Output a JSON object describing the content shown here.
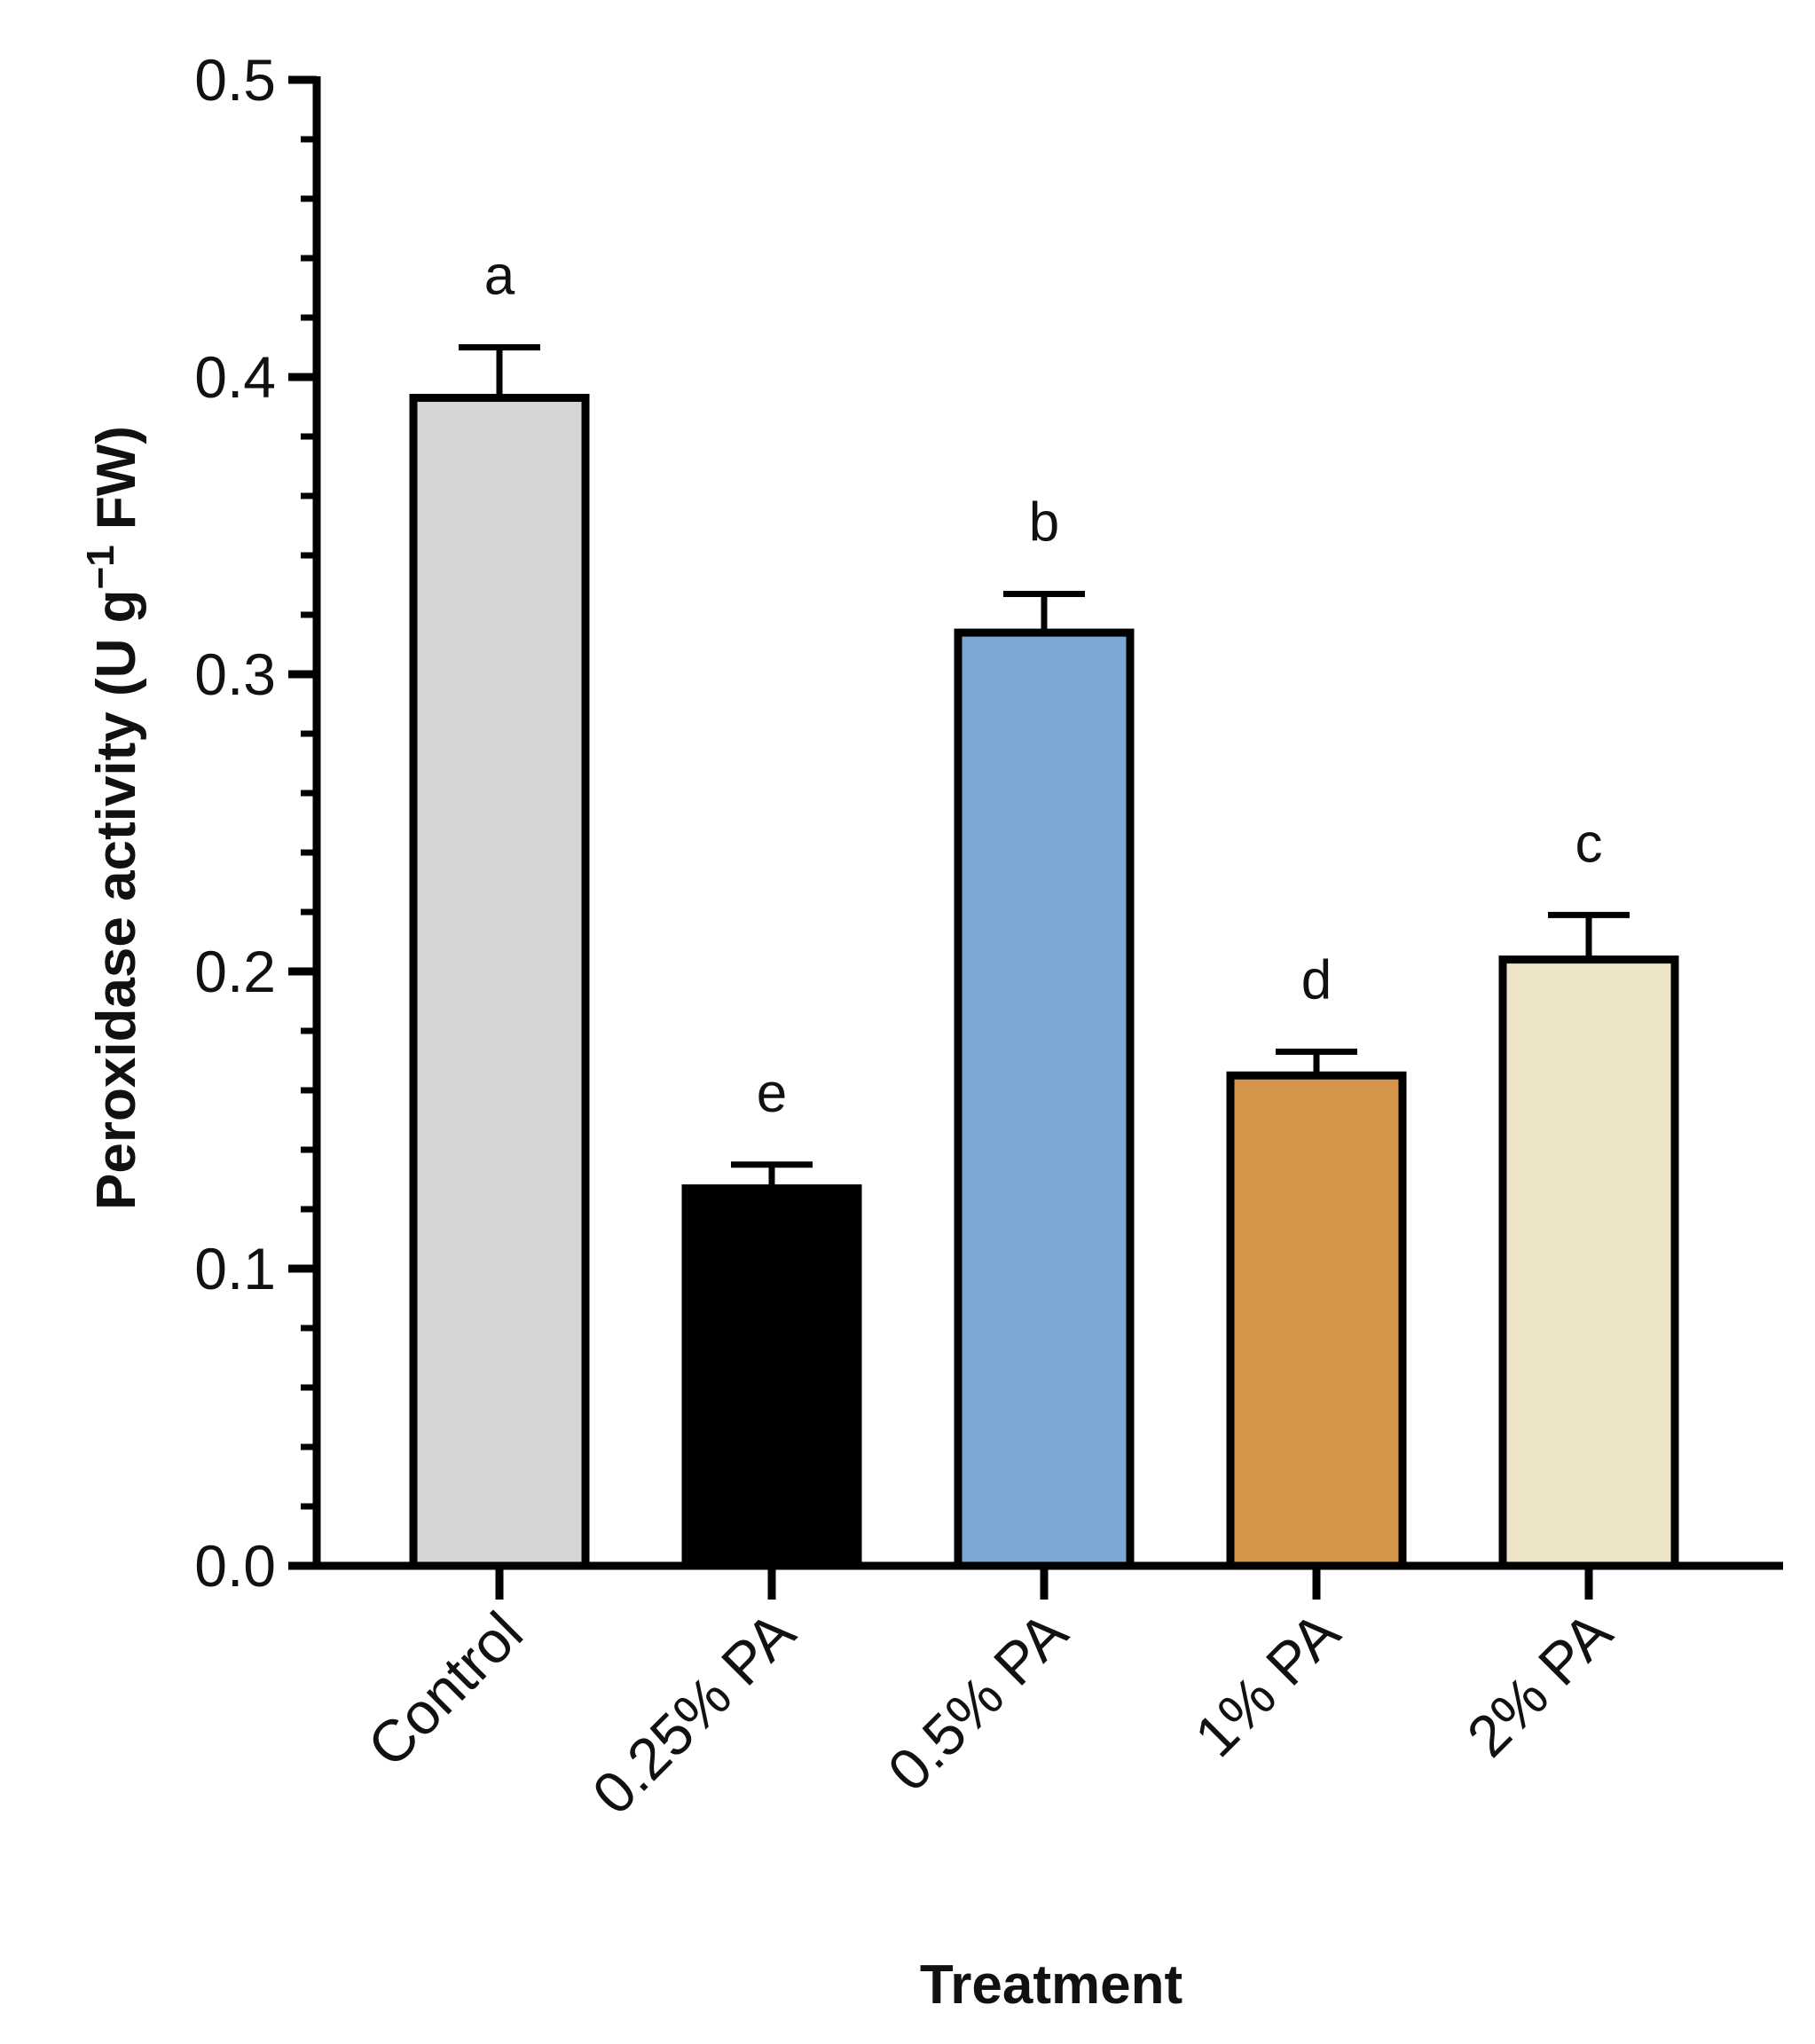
{
  "chart_data": {
    "type": "bar",
    "xlabel": "Treatment",
    "ylabel_main": "Peroxidase activity (U g",
    "ylabel_sup": "−1",
    "ylabel_end": " FW)",
    "ylim": [
      0,
      0.5
    ],
    "yticks": [
      0.0,
      0.1,
      0.2,
      0.3,
      0.4,
      0.5
    ],
    "ytick_labels": [
      "0.0",
      "0.1",
      "0.2",
      "0.3",
      "0.4",
      "0.5"
    ],
    "minor_ticks_per_major": 4,
    "categories": [
      "Control",
      "0.25% PA",
      "0.5% PA",
      "1% PA",
      "2% PA"
    ],
    "values": [
      0.393,
      0.127,
      0.314,
      0.165,
      0.204
    ],
    "errors": [
      0.017,
      0.008,
      0.013,
      0.008,
      0.015
    ],
    "significance": [
      "a",
      "e",
      "b",
      "d",
      "c"
    ],
    "colors": [
      "#d6d6d6",
      "#000000",
      "#7ba7d4",
      "#d4944a",
      "#ede4c8"
    ],
    "grid": false,
    "legend": "none"
  }
}
